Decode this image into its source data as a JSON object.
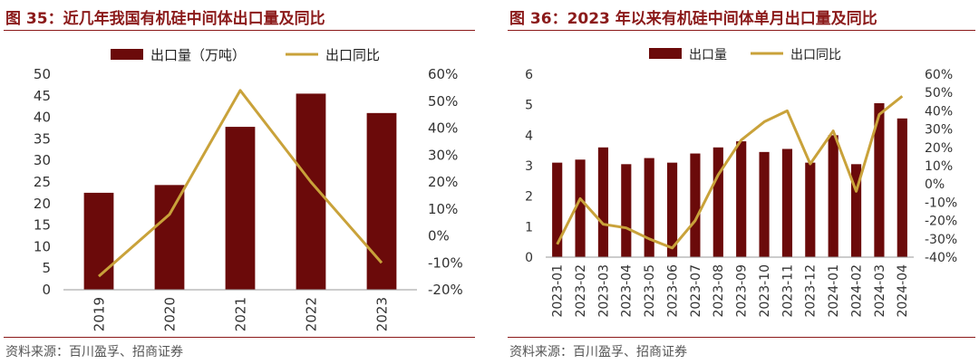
{
  "colors": {
    "bar": "#6b0a0a",
    "line": "#c9a23a",
    "title": "#8b1a1a",
    "axis": "#999999"
  },
  "left": {
    "title": "图 35：近几年我国有机硅中间体出口量及同比",
    "source": "资料来源：百川盈孚、招商证券"
  },
  "right": {
    "title": "图 36：2023 年以来有机硅中间体单月出口量及同比",
    "source": "资料来源：百川盈孚、招商证券"
  },
  "chart_data": [
    {
      "type": "bar",
      "categories": [
        "2019",
        "2020",
        "2021",
        "2022",
        "2023"
      ],
      "series": [
        {
          "name": "出口量（万吨）",
          "type": "bar",
          "axis": "left",
          "values": [
            22.5,
            24.3,
            37.8,
            45.5,
            41.0
          ]
        },
        {
          "name": "出口同比",
          "type": "line",
          "axis": "right",
          "values": [
            -15,
            8,
            54,
            20,
            -10
          ]
        }
      ],
      "y_left": {
        "min": 0,
        "max": 50,
        "step": 5,
        "ticks": [
          "0",
          "5",
          "10",
          "15",
          "20",
          "25",
          "30",
          "35",
          "40",
          "45",
          "50"
        ]
      },
      "y_right": {
        "min": -20,
        "max": 60,
        "step": 10,
        "ticks": [
          "-20%",
          "-10%",
          "0%",
          "10%",
          "20%",
          "30%",
          "40%",
          "50%",
          "60%"
        ]
      },
      "legend": "top-center",
      "grid": false
    },
    {
      "type": "bar",
      "categories": [
        "2023-01",
        "2023-02",
        "2023-03",
        "2023-04",
        "2023-05",
        "2023-06",
        "2023-07",
        "2023-08",
        "2023-09",
        "2023-10",
        "2023-11",
        "2023-12",
        "2024-01",
        "2024-02",
        "2024-03",
        "2024-04"
      ],
      "series": [
        {
          "name": "出口量",
          "type": "bar",
          "axis": "left",
          "values": [
            3.1,
            3.2,
            3.6,
            3.05,
            3.25,
            3.1,
            3.4,
            3.6,
            3.8,
            3.45,
            3.55,
            3.1,
            4.0,
            3.05,
            5.05,
            4.55
          ]
        },
        {
          "name": "出口同比",
          "type": "line",
          "axis": "right",
          "values": [
            -33,
            -8,
            -22,
            -24,
            -30,
            -35,
            -20,
            5,
            24,
            34,
            40,
            11,
            29,
            -4,
            38,
            48
          ]
        }
      ],
      "y_left": {
        "min": 0,
        "max": 6,
        "step": 1,
        "ticks": [
          "0",
          "1",
          "2",
          "3",
          "4",
          "5",
          "6"
        ]
      },
      "y_right": {
        "min": -40,
        "max": 60,
        "step": 10,
        "ticks": [
          "-40%",
          "-30%",
          "-20%",
          "-10%",
          "0%",
          "10%",
          "20%",
          "30%",
          "40%",
          "50%",
          "60%"
        ]
      },
      "legend": "top-center",
      "grid": false
    }
  ]
}
